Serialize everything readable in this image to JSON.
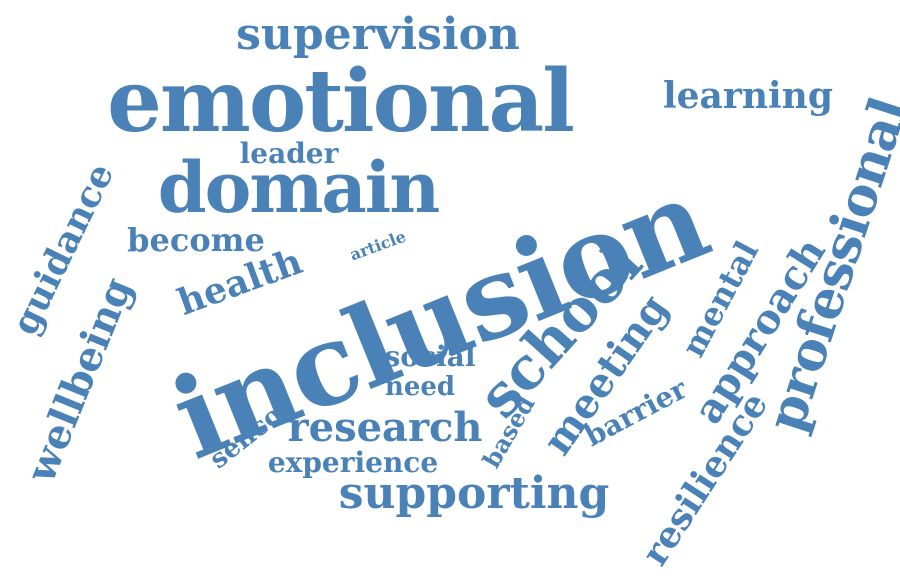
{
  "word_cloud": {
    "color": "#4a82b8",
    "words": [
      "inclusion",
      "emotional",
      "domain",
      "school",
      "professional",
      "supporting",
      "supervision",
      "wellbeing",
      "research",
      "meeting",
      "approach",
      "resilience",
      "guidance",
      "learning",
      "health",
      "become",
      "mental",
      "experience",
      "social",
      "need",
      "sencos",
      "based",
      "barrier",
      "leader",
      "article"
    ]
  }
}
